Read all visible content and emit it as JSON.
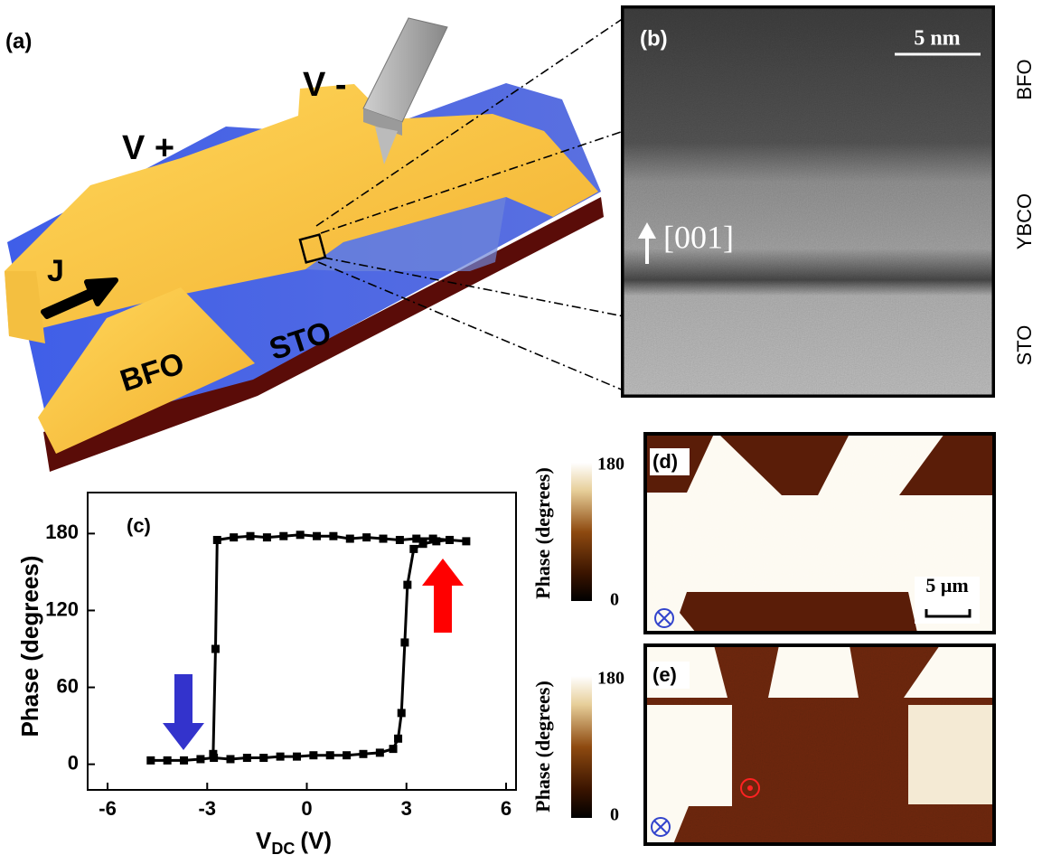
{
  "panel_a": {
    "label": "(a)",
    "v_plus": "V +",
    "v_minus": "V -",
    "current": "J",
    "bfo": "BFO",
    "sto": "STO"
  },
  "panel_b": {
    "label": "(b)",
    "scale_bar": "5 nm",
    "direction": "[001]",
    "layers": [
      "BFO",
      "YBCO",
      "STO"
    ]
  },
  "chart_data": {
    "type": "line",
    "label": "(c)",
    "xlabel": "V",
    "xlabel_sub": "DC",
    "xlabel_unit": "(V)",
    "ylabel": "Phase (degrees)",
    "xlim": [
      -6.6,
      6.3
    ],
    "ylim": [
      -20,
      212
    ],
    "xticks": [
      -6,
      -3,
      0,
      3,
      6
    ],
    "yticks": [
      0,
      60,
      120,
      180
    ],
    "series": [
      {
        "color": "#000000",
        "x": [
          -4.7,
          -4.2,
          -3.7,
          -3.2,
          -2.8,
          -2.3,
          -1.8,
          -1.3,
          -0.8,
          -0.3,
          0.2,
          0.7,
          1.2,
          1.7,
          2.2,
          2.6,
          2.75,
          2.85,
          2.95,
          3.03,
          3.22,
          3.5,
          3.9,
          4.3,
          4.8,
          4.3,
          3.8,
          3.3,
          2.8,
          2.3,
          1.8,
          1.3,
          0.8,
          0.3,
          -0.2,
          -0.7,
          -1.2,
          -1.7,
          -2.2,
          -2.7,
          -2.75,
          -2.82
        ],
        "values": [
          3,
          3,
          3,
          4,
          5,
          4,
          5,
          5,
          6,
          6,
          7,
          7,
          7,
          8,
          9,
          12,
          20,
          40,
          95,
          140,
          168,
          172,
          174,
          175,
          174,
          175,
          176,
          176,
          175,
          176,
          177,
          176,
          178,
          178,
          179,
          178,
          177,
          178,
          177,
          175,
          90,
          8
        ]
      }
    ]
  },
  "panel_d": {
    "label": "(d)",
    "colorbar_label": "Phase (degrees)",
    "colorbar_ticks": [
      180,
      0
    ],
    "scale_bar": "5 μm"
  },
  "panel_e": {
    "label": "(e)",
    "colorbar_label": "Phase (degrees)",
    "colorbar_ticks": [
      180,
      0
    ]
  }
}
